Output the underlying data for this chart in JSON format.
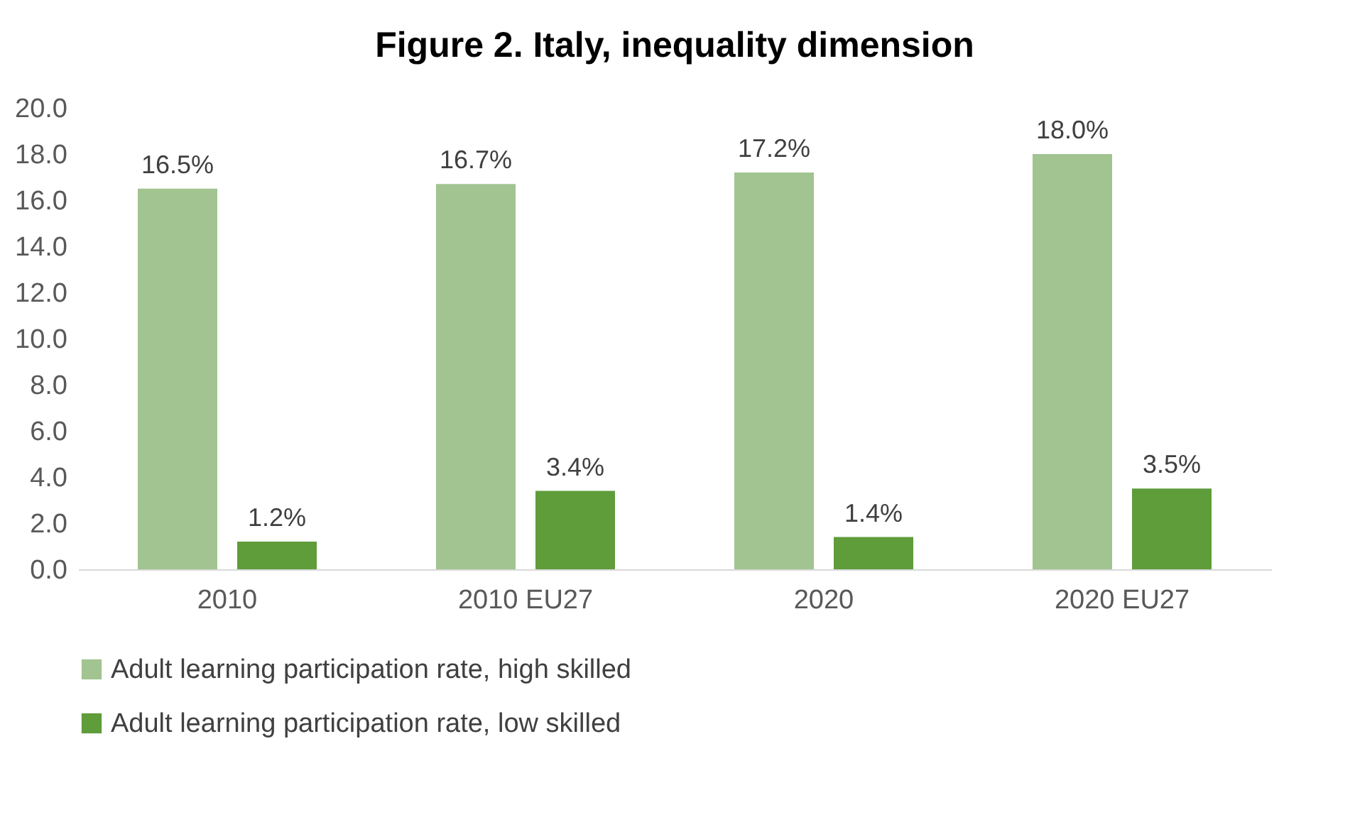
{
  "chart_data": {
    "type": "bar",
    "title": "Figure  2. Italy, inequality dimension",
    "categories": [
      "2010",
      "2010 EU27",
      "2020",
      "2020 EU27"
    ],
    "series": [
      {
        "name": "Adult learning participation rate, high skilled",
        "color": "#a1c490",
        "values": [
          16.5,
          16.7,
          17.2,
          18.0
        ],
        "value_labels": [
          "16.5%",
          "16.7%",
          "17.2%",
          "18.0%"
        ]
      },
      {
        "name": "Adult learning participation rate, low skilled",
        "color": "#5f9c3a",
        "values": [
          1.2,
          3.4,
          1.4,
          3.5
        ],
        "value_labels": [
          "1.2%",
          "3.4%",
          "1.4%",
          "3.5%"
        ]
      }
    ],
    "ylim": [
      0,
      20
    ],
    "yticks": [
      {
        "value": 0,
        "label": "0.0"
      },
      {
        "value": 2,
        "label": "2.0"
      },
      {
        "value": 4,
        "label": "4.0"
      },
      {
        "value": 6,
        "label": "6.0"
      },
      {
        "value": 8,
        "label": "8.0"
      },
      {
        "value": 10,
        "label": "10.0"
      },
      {
        "value": 12,
        "label": "12.0"
      },
      {
        "value": 14,
        "label": "14.0"
      },
      {
        "value": 16,
        "label": "16.0"
      },
      {
        "value": 18,
        "label": "18.0"
      },
      {
        "value": 20,
        "label": "20.0"
      }
    ],
    "grid": false,
    "legend": "bottom"
  }
}
